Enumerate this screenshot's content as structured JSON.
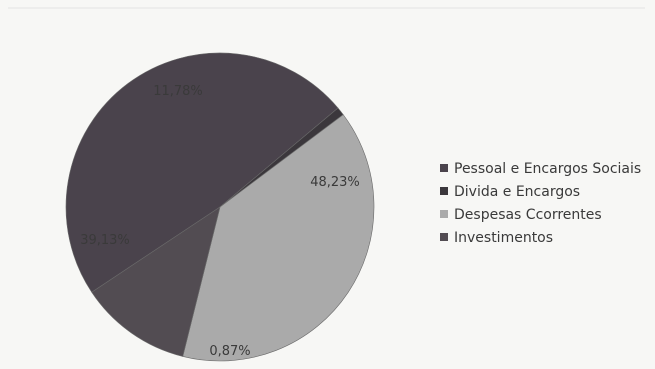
{
  "chart_data": {
    "type": "pie",
    "slices": [
      {
        "name": "Pessoal e Encargos Sociais",
        "value": 48.23,
        "label": "48,23%",
        "color": "#4a434c"
      },
      {
        "name": "Divida e Encargos",
        "value": 0.87,
        "label": "0,87%",
        "color": "#3b373c"
      },
      {
        "name": "Despesas Ccorrentes",
        "value": 39.13,
        "label": "39,13%",
        "color": "#aaaaaa"
      },
      {
        "name": "Investimentos",
        "value": 11.78,
        "label": "11,78%",
        "color": "#524c52"
      }
    ],
    "legend_position": "right"
  }
}
